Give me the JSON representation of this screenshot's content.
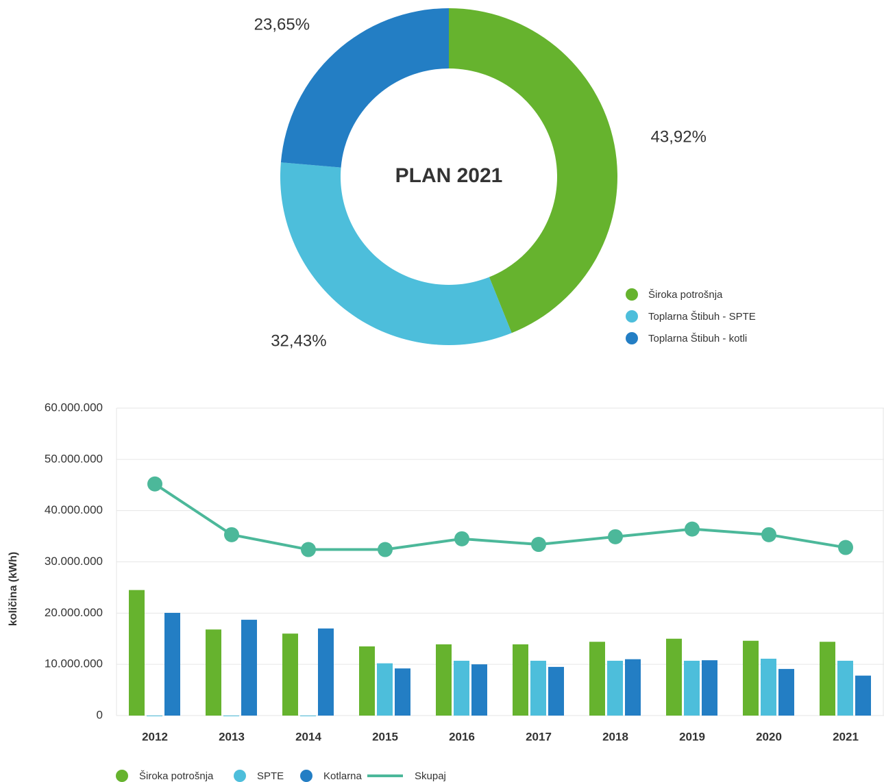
{
  "chart_data": [
    {
      "type": "donut",
      "title": "PLAN 2021",
      "categories": [
        "Široka potrošnja",
        "Toplarna Štibuh - SPTE",
        "Toplarna Štibuh - kotli"
      ],
      "values": [
        43.92,
        32.43,
        23.65
      ],
      "value_labels": [
        "43,92%",
        "32,43%",
        "23,65%"
      ],
      "colors": [
        "#66b32e",
        "#4dbedb",
        "#237ec4"
      ],
      "legend": "bottom-right"
    },
    {
      "type": "bar",
      "ylabel": "količina (kWh)",
      "categories": [
        "2012",
        "2013",
        "2014",
        "2015",
        "2016",
        "2017",
        "2018",
        "2019",
        "2020",
        "2021"
      ],
      "series": [
        {
          "name": "Široka potrošnja",
          "color": "#66b32e",
          "values": [
            24500000,
            16800000,
            16000000,
            13500000,
            13900000,
            13900000,
            14400000,
            15000000,
            14600000,
            14400000
          ]
        },
        {
          "name": "SPTE",
          "color": "#4dbedb",
          "values": [
            0,
            0,
            0,
            10200000,
            10700000,
            10700000,
            10700000,
            10700000,
            11100000,
            10700000
          ]
        },
        {
          "name": "Kotlarna",
          "color": "#237ec4",
          "values": [
            20050000,
            18700000,
            17000000,
            9200000,
            10000000,
            9500000,
            11000000,
            10800000,
            9100000,
            7800000
          ]
        },
        {
          "name": "Skupaj",
          "type": "line",
          "color": "#4cb89a",
          "values": [
            45200000,
            35300000,
            32400000,
            32400000,
            34500000,
            33400000,
            34900000,
            36400000,
            35300000,
            32800000
          ]
        }
      ],
      "ylim": [
        0,
        60000000
      ],
      "yticks": [
        0,
        {
          "value": 10000000,
          "label": "10.000.000"
        },
        {
          "value": 20000000,
          "label": "20.000.000"
        },
        {
          "value": 30000000,
          "label": "30.000.000"
        },
        {
          "value": 40000000,
          "label": "40.000.000"
        },
        {
          "value": 50000000,
          "label": "50.000.000"
        },
        {
          "value": 60000000,
          "label": "60.000.000"
        }
      ],
      "grid": true,
      "legend": "bottom"
    }
  ]
}
